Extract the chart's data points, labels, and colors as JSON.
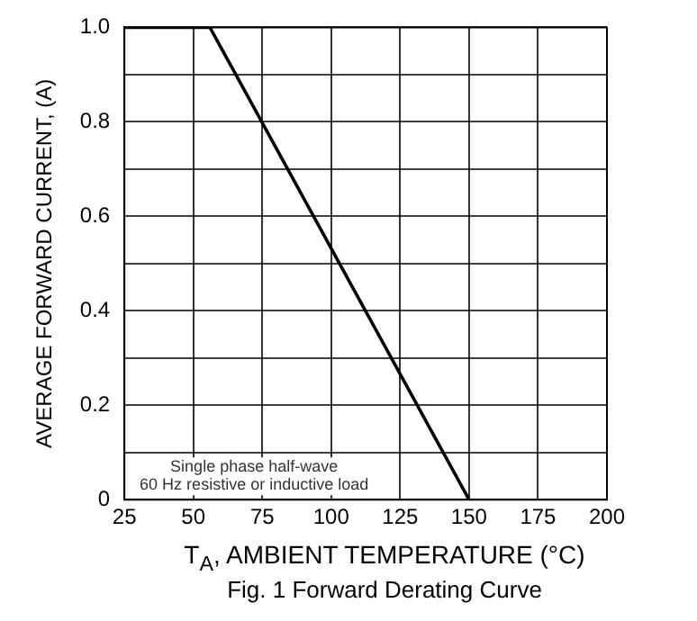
{
  "chart_data": {
    "type": "line",
    "title": "Fig. 1  Forward Derating Curve",
    "xlabel": "T$_{A}$, AMBIENT TEMPERATURE (°C)",
    "ylabel": "AVERAGE FORWARD CURRENT, (A)",
    "annotations": [
      "Single phase half-wave\n60 Hz resistive or inductive load"
    ],
    "x": [
      25,
      56,
      150
    ],
    "series": [
      {
        "color": "#000000",
        "values": [
          1.0,
          1.0,
          0
        ]
      }
    ],
    "xlim": [
      25,
      200
    ],
    "xticks": [
      25,
      50,
      75,
      100,
      125,
      150,
      175,
      200
    ],
    "ylim": [
      0,
      1
    ],
    "yticks": [
      0,
      {
        "value": 0.1,
        "label": null
      },
      {
        "value": 0.2,
        "label": "0.2"
      },
      {
        "value": 0.3,
        "label": null
      },
      {
        "value": 0.4,
        "label": "0.4"
      },
      {
        "value": 0.5,
        "label": null
      },
      {
        "value": 0.6,
        "label": "0.6"
      },
      {
        "value": 0.7,
        "label": null
      },
      {
        "value": 0.8,
        "label": "0.8"
      },
      {
        "value": 0.9,
        "label": null
      },
      {
        "value": 1,
        "label": "1.0"
      }
    ],
    "grid": true,
    "legend": false,
    "marker": "none",
    "line_style": "solid"
  }
}
